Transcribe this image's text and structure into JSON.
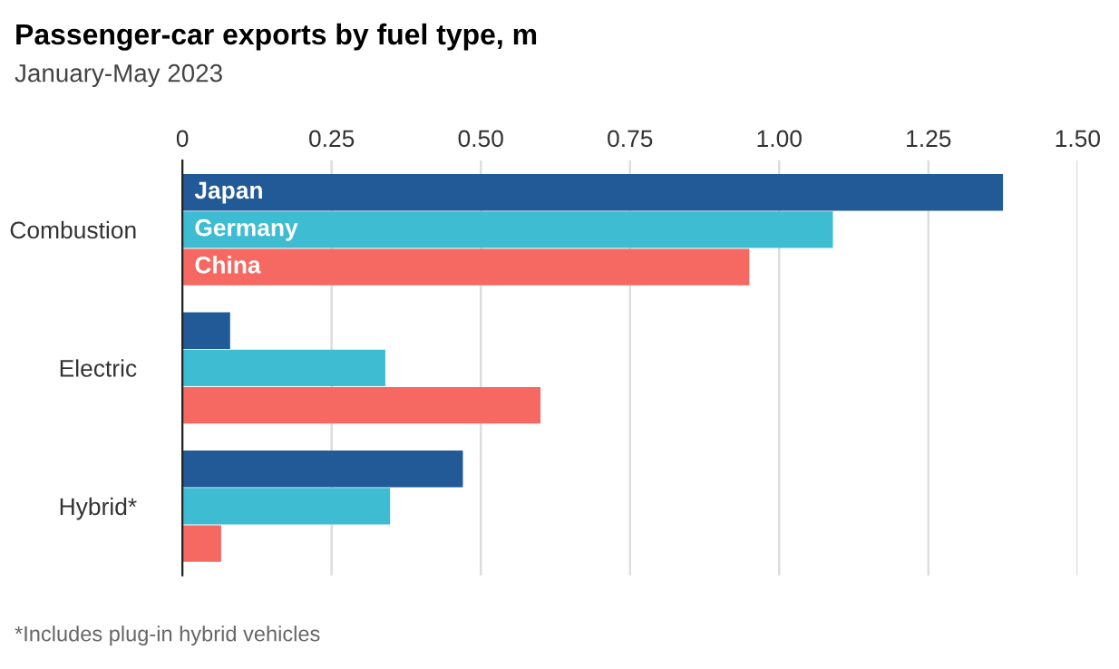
{
  "chart_data": {
    "type": "bar",
    "orientation": "horizontal",
    "title": "Passenger-car exports by fuel type, m",
    "subtitle": "January-May 2023",
    "categories": [
      "Combustion",
      "Electric",
      "Hybrid*"
    ],
    "series": [
      {
        "name": "Japan",
        "color": "#215a96",
        "values": [
          1.375,
          0.08,
          0.47
        ]
      },
      {
        "name": "Germany",
        "color": "#3ebcd2",
        "values": [
          1.09,
          0.34,
          0.348
        ]
      },
      {
        "name": "China",
        "color": "#f56962",
        "values": [
          0.95,
          0.6,
          0.065
        ]
      }
    ],
    "xlim": [
      0,
      1.5
    ],
    "xticks": [
      0,
      {
        "value": 0.25,
        "label": "0.25"
      },
      {
        "value": 0.5,
        "label": "0.50"
      },
      {
        "value": 0.75,
        "label": "0.75"
      },
      {
        "value": 1.0,
        "label": "1.00"
      },
      {
        "value": 1.25,
        "label": "1.25"
      },
      {
        "value": 1.5,
        "label": "1.50"
      }
    ],
    "grid": "x",
    "legend": false,
    "annotations": [
      "*Includes plug-in hybrid vehicles"
    ]
  }
}
